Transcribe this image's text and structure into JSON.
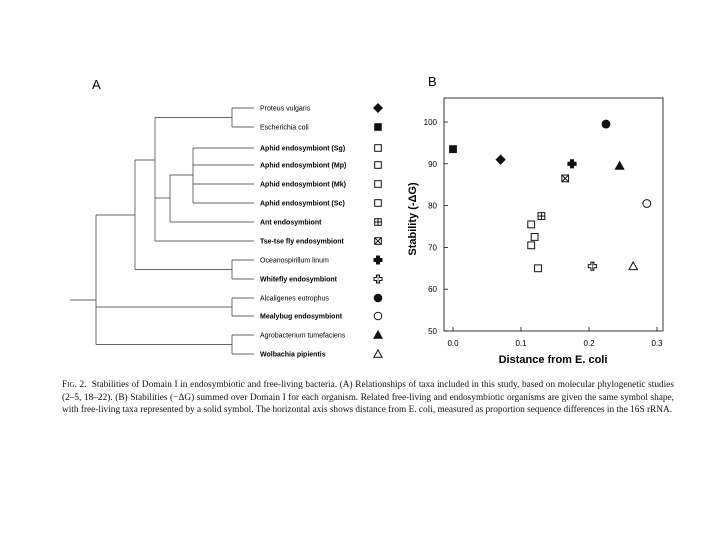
{
  "figure": {
    "panel_a_label": "A",
    "panel_b_label": "B",
    "caption": {
      "label": "Fig. 2.",
      "text": "Stabilities of Domain I in endosymbiotic and free-living bacteria. (A) Relationships of taxa included in this study, based on molecular phylogenetic studies (2–5, 18–22). (B) Stabilities (−ΔG) summed over Domain I for each organism. Related free-living and endosymbiotic organisms are given the same symbol shape, with free-living taxa represented by a solid symbol. The horizontal axis shows distance from E. coli, measured as proportion sequence differences in the 16S rRNA."
    }
  },
  "taxa": [
    {
      "name": "Proteus vulgaris",
      "symbol": "diamond",
      "filled": true,
      "bold": false
    },
    {
      "name": "Escherichia coli",
      "symbol": "square",
      "filled": true,
      "bold": false
    },
    {
      "name": "Aphid endosymbiont (Sg)",
      "symbol": "square",
      "filled": false,
      "bold": true
    },
    {
      "name": "Aphid endosymbiont (Mp)",
      "symbol": "square",
      "filled": false,
      "bold": true
    },
    {
      "name": "Aphid endosymbiont (Mk)",
      "symbol": "square",
      "filled": false,
      "bold": true
    },
    {
      "name": "Aphid endosymbiont (Sc)",
      "symbol": "square",
      "filled": false,
      "bold": true
    },
    {
      "name": "Ant endosymbiont",
      "symbol": "square-plus",
      "filled": false,
      "bold": true
    },
    {
      "name": "Tse-tse fly endosymbiont",
      "symbol": "square-x",
      "filled": false,
      "bold": true
    },
    {
      "name": "Oceanospirillum linum",
      "symbol": "cross",
      "filled": true,
      "bold": false
    },
    {
      "name": "Whitefly endosymbiont",
      "symbol": "cross",
      "filled": false,
      "bold": true
    },
    {
      "name": "Alcaligenes eutrophus",
      "symbol": "circle",
      "filled": true,
      "bold": false
    },
    {
      "name": "Mealybug endosymbiont",
      "symbol": "circle",
      "filled": false,
      "bold": true
    },
    {
      "name": "Agrobacterium tumefaciens",
      "symbol": "triangle",
      "filled": true,
      "bold": false
    },
    {
      "name": "Wolbachia pipientis",
      "symbol": "triangle",
      "filled": false,
      "bold": true
    }
  ],
  "chart_data": {
    "type": "scatter",
    "title": "",
    "xlabel": "Distance from E. coli",
    "ylabel": "Stability (-ΔG)",
    "xlim": [
      0.0,
      0.3
    ],
    "ylim": [
      50,
      100
    ],
    "x_ticks": [
      "0.0",
      "0.1",
      "0.2",
      "0.3"
    ],
    "y_ticks": [
      "50",
      "60",
      "70",
      "80",
      "90",
      "100"
    ],
    "points": [
      {
        "label": "Escherichia coli",
        "x": 0.0,
        "y": 93.5,
        "symbol": "square",
        "filled": true
      },
      {
        "label": "Proteus vulgaris",
        "x": 0.07,
        "y": 91,
        "symbol": "diamond",
        "filled": true
      },
      {
        "label": "Oceanospirillum linum",
        "x": 0.175,
        "y": 90,
        "symbol": "cross",
        "filled": true
      },
      {
        "label": "Alcaligenes eutrophus",
        "x": 0.225,
        "y": 99.5,
        "symbol": "circle",
        "filled": true
      },
      {
        "label": "Agrobacterium tumefaciens",
        "x": 0.245,
        "y": 89.5,
        "symbol": "triangle",
        "filled": true
      },
      {
        "label": "Tse-tse fly endosymbiont",
        "x": 0.165,
        "y": 86.5,
        "symbol": "square-x",
        "filled": false
      },
      {
        "label": "Mealybug endosymbiont",
        "x": 0.285,
        "y": 80.5,
        "symbol": "circle",
        "filled": false
      },
      {
        "label": "Ant endosymbiont",
        "x": 0.13,
        "y": 77.5,
        "symbol": "square-plus",
        "filled": false
      },
      {
        "label": "Aphid endosymbiont (Sg)",
        "x": 0.115,
        "y": 75.5,
        "symbol": "square",
        "filled": false
      },
      {
        "label": "Aphid endosymbiont (Mp)",
        "x": 0.12,
        "y": 72.5,
        "symbol": "square",
        "filled": false
      },
      {
        "label": "Aphid endosymbiont (Mk)",
        "x": 0.115,
        "y": 70.5,
        "symbol": "square",
        "filled": false
      },
      {
        "label": "Aphid endosymbiont (Sc)",
        "x": 0.125,
        "y": 65,
        "symbol": "square",
        "filled": false
      },
      {
        "label": "Whitefly endosymbiont",
        "x": 0.205,
        "y": 65.5,
        "symbol": "cross",
        "filled": false
      },
      {
        "label": "Wolbachia pipientis",
        "x": 0.265,
        "y": 65.5,
        "symbol": "triangle",
        "filled": false
      }
    ]
  },
  "colors": {
    "ink": "#111111",
    "background": "#ffffff"
  }
}
